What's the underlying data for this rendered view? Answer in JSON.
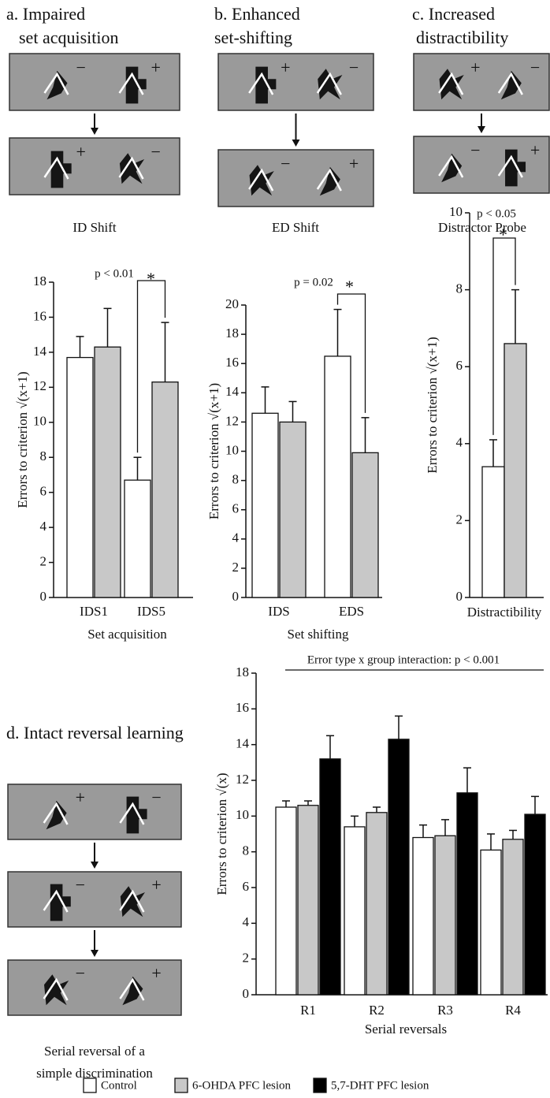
{
  "chart_data": [
    {
      "type": "bar",
      "panel_title": [
        "a. Impaired",
        "set acquisition"
      ],
      "stimulus_signs": [
        [
          "−",
          "+"
        ],
        [
          "+",
          "−"
        ]
      ],
      "stimulus_caption": [
        "ID Shift"
      ],
      "categories": [
        "IDS1",
        "IDS5"
      ],
      "x_label": "Set acquisition",
      "y_label": "Errors to criterion  √(x+1)",
      "ylim": [
        0,
        18
      ],
      "yticks": [
        0,
        2,
        4,
        6,
        8,
        10,
        12,
        14,
        16,
        18
      ],
      "series": [
        {
          "color": "#ffffff",
          "values": [
            13.7,
            6.7
          ],
          "errors": [
            1.2,
            1.3
          ]
        },
        {
          "color": "#c8c8c8",
          "values": [
            14.3,
            12.3
          ],
          "errors": [
            2.2,
            3.4
          ]
        }
      ],
      "annotation": "p < 0.01",
      "significance": "*"
    },
    {
      "type": "bar",
      "panel_title": [
        "b. Enhanced",
        "set-shifting"
      ],
      "stimulus_signs": [
        [
          "+",
          "−"
        ],
        [
          "−",
          "+"
        ]
      ],
      "stimulus_caption": [
        "ED Shift"
      ],
      "categories": [
        "IDS",
        "EDS"
      ],
      "x_label": "Set shifting",
      "y_label": "Errors to criterion  √(x+1)",
      "ylim": [
        0,
        20
      ],
      "yticks": [
        0,
        2,
        4,
        6,
        8,
        10,
        12,
        14,
        16,
        18,
        20
      ],
      "series": [
        {
          "color": "#ffffff",
          "values": [
            12.6,
            16.5
          ],
          "errors": [
            1.8,
            3.2
          ]
        },
        {
          "color": "#c8c8c8",
          "values": [
            12.0,
            9.9
          ],
          "errors": [
            1.4,
            2.4
          ]
        }
      ],
      "annotation": "p = 0.02",
      "significance": "*"
    },
    {
      "type": "bar",
      "panel_title": [
        "c. Increased",
        "distractibility"
      ],
      "stimulus_signs": [
        [
          "+",
          "−"
        ],
        [
          "−",
          "+"
        ]
      ],
      "stimulus_caption": [
        "Distractor Probe"
      ],
      "categories": [
        null
      ],
      "x_label": "Distractibility",
      "y_label": "Errors to criterion  √(x+1)",
      "ylim": [
        0,
        10
      ],
      "yticks": [
        0,
        2,
        4,
        6,
        8,
        10
      ],
      "series": [
        {
          "color": "#ffffff",
          "values": [
            3.4
          ],
          "errors": [
            0.7
          ]
        },
        {
          "color": "#c8c8c8",
          "values": [
            6.6
          ],
          "errors": [
            1.4
          ]
        }
      ],
      "annotation": "p < 0.05",
      "significance": "*"
    },
    {
      "type": "bar",
      "panel_title": [
        "d. Intact reversal learning"
      ],
      "stimulus_signs": [
        [
          "+",
          "−"
        ],
        [
          "−",
          "+"
        ],
        [
          "−",
          "+"
        ]
      ],
      "stimulus_caption": [
        "Serial reversal of a",
        "simple discrimination"
      ],
      "categories": [
        "R1",
        "R2",
        "R3",
        "R4"
      ],
      "x_label": "Serial reversals",
      "y_label": "Errors to criterion  √(x)",
      "ylim": [
        0,
        18
      ],
      "yticks": [
        0,
        2,
        4,
        6,
        8,
        10,
        12,
        14,
        16,
        18
      ],
      "series": [
        {
          "name": "Control",
          "color": "#ffffff",
          "values": [
            10.5,
            9.4,
            8.8,
            8.1
          ],
          "errors": [
            0.35,
            0.6,
            0.7,
            0.9
          ]
        },
        {
          "name": "6-OHDA PFC lesion",
          "color": "#c8c8c8",
          "values": [
            10.6,
            10.2,
            8.9,
            8.7
          ],
          "errors": [
            0.25,
            0.3,
            0.9,
            0.5
          ]
        },
        {
          "name": "5,7-DHT PFC lesion",
          "color": "#000000",
          "values": [
            13.2,
            14.3,
            11.3,
            10.1
          ],
          "errors": [
            1.3,
            1.3,
            1.4,
            1.0
          ]
        }
      ],
      "annotation": "Error type x group interaction: p < 0.001",
      "legend": true
    }
  ]
}
